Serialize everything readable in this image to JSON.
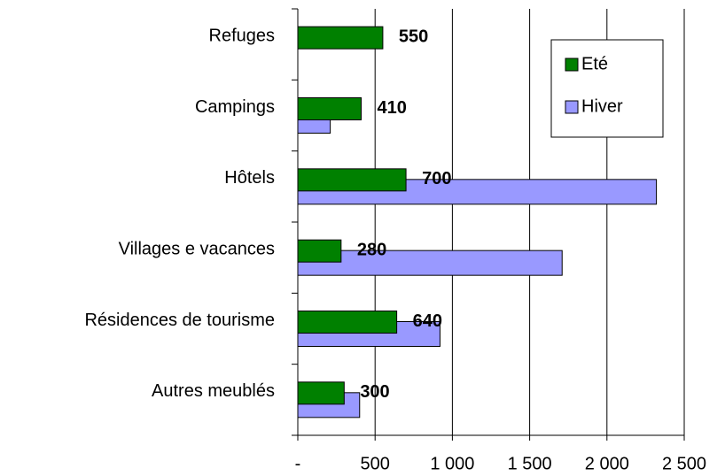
{
  "chart_data": {
    "type": "barh",
    "categories": [
      "Refuges",
      "Campings",
      "Hôtels",
      "Villages e vacances",
      "Résidences de tourisme",
      "Autres meublés"
    ],
    "series": [
      {
        "name": "Eté",
        "color": "#008000",
        "values": [
          550,
          410,
          700,
          280,
          640,
          300
        ],
        "labels": true
      },
      {
        "name": "Hiver",
        "color": "#9999ff",
        "values": [
          null,
          210,
          2320,
          1710,
          920,
          400
        ],
        "labels": false
      }
    ],
    "xlim": [
      0,
      2500
    ],
    "xticks": [
      {
        "value": 0,
        "label": "-"
      },
      500,
      {
        "value": 1000,
        "label": "1 000"
      },
      {
        "value": 1500,
        "label": "1 500"
      },
      {
        "value": 2000,
        "label": "2 000"
      },
      {
        "value": 2500,
        "label": "2 500"
      }
    ],
    "grid": true,
    "legend": "top-right"
  }
}
